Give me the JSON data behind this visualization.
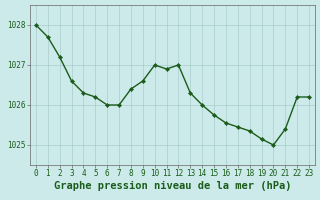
{
  "x": [
    0,
    1,
    2,
    3,
    4,
    5,
    6,
    7,
    8,
    9,
    10,
    11,
    12,
    13,
    14,
    15,
    16,
    17,
    18,
    19,
    20,
    21,
    22,
    23
  ],
  "y": [
    1028.0,
    1027.7,
    1027.2,
    1026.6,
    1026.3,
    1026.2,
    1026.0,
    1026.0,
    1026.4,
    1026.6,
    1027.0,
    1026.9,
    1027.0,
    1026.3,
    1026.0,
    1025.75,
    1025.55,
    1025.45,
    1025.35,
    1025.15,
    1025.0,
    1025.4,
    1026.2,
    1026.2
  ],
  "line_color": "#1a5c1a",
  "marker": "D",
  "marker_size": 2.2,
  "background_color": "#cdeaea",
  "grid_color": "#aacccc",
  "xlabel": "Graphe pression niveau de la mer (hPa)",
  "xlabel_fontsize": 7.5,
  "ylabel_ticks": [
    1025,
    1026,
    1027,
    1028
  ],
  "xlim": [
    -0.5,
    23.5
  ],
  "ylim": [
    1024.5,
    1028.5
  ],
  "xtick_labels": [
    "0",
    "1",
    "2",
    "3",
    "4",
    "5",
    "6",
    "7",
    "8",
    "9",
    "10",
    "11",
    "12",
    "13",
    "14",
    "15",
    "16",
    "17",
    "18",
    "19",
    "20",
    "21",
    "22",
    "23"
  ],
  "tick_color": "#1a5c1a",
  "tick_fontsize": 5.5,
  "axis_color": "#666666",
  "linewidth": 1.0
}
